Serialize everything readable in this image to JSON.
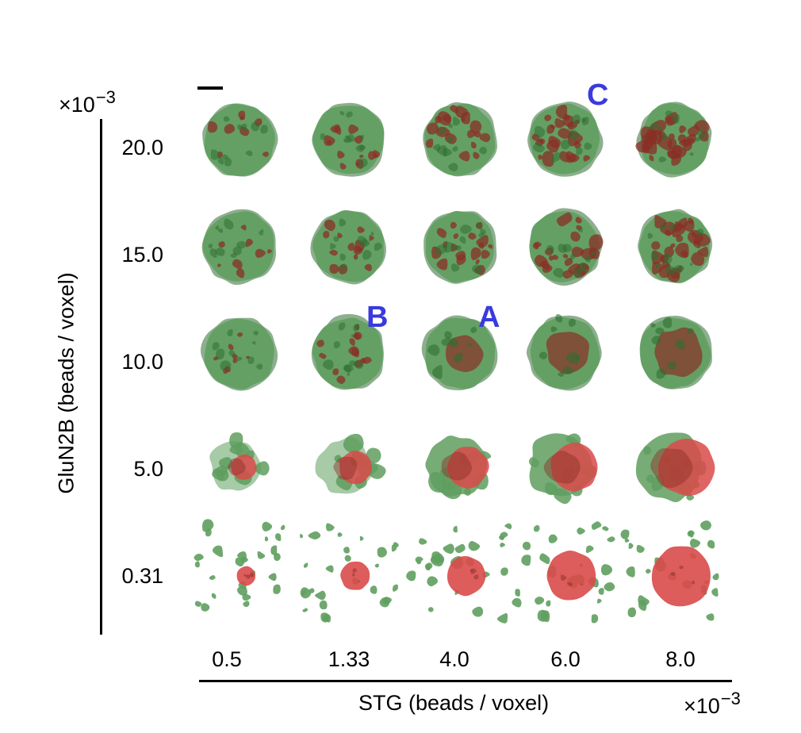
{
  "y_axis": {
    "title": "GluN2B (beads / voxel)",
    "scale_prefix": "×10",
    "scale_exponent": "−3",
    "ticks": [
      "20.0",
      "15.0",
      "10.0",
      "5.0",
      "0.31"
    ]
  },
  "x_axis": {
    "title": "STG (beads / voxel)",
    "scale_prefix": "×10",
    "scale_exponent": "−3",
    "ticks": [
      "0.5",
      "1.33",
      "4.0",
      "6.0",
      "8.0"
    ]
  },
  "panel_labels": {
    "A": "A",
    "B": "B",
    "C": "C"
  },
  "colors": {
    "glun2b_green": "#5f9e5f",
    "glun2b_dark": "#2f6e31",
    "stg_red": "#d94a4a",
    "stg_dark": "#8a2f25",
    "label_blue": "#3a3adf"
  },
  "grid": {
    "rows_glun2b": [
      20.0,
      15.0,
      10.0,
      5.0,
      0.31
    ],
    "cols_stg": [
      0.5,
      1.33,
      4.0,
      6.0,
      8.0
    ]
  }
}
